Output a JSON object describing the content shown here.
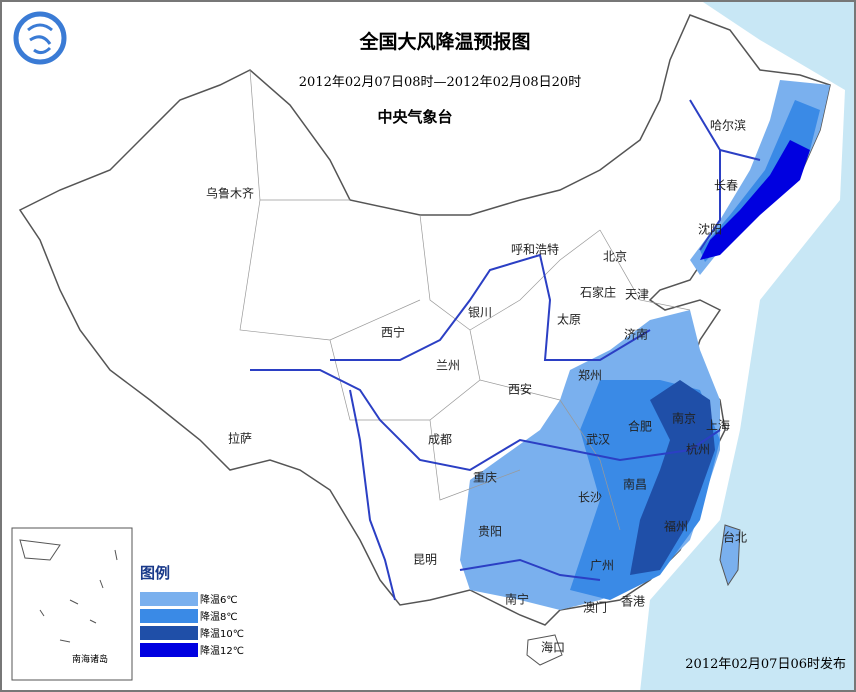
{
  "header": {
    "title": "全国大风降温预报图",
    "period": "2012年02月07日08时—2012年02月08日20时",
    "issuer": "中央气象台"
  },
  "cities": [
    "乌鲁木齐",
    "哈尔滨",
    "长春",
    "沈阳",
    "呼和浩特",
    "北京",
    "天津",
    "石家庄",
    "太原",
    "济南",
    "银川",
    "西宁",
    "兰州",
    "西安",
    "郑州",
    "南京",
    "上海",
    "合肥",
    "武汉",
    "杭州",
    "拉萨",
    "成都",
    "重庆",
    "长沙",
    "南昌",
    "贵阳",
    "福州",
    "台北",
    "昆明",
    "广州",
    "南宁",
    "澳门",
    "香港",
    "海口"
  ],
  "legend": {
    "title": "图例",
    "items": [
      "降温6℃",
      "降温8℃",
      "降温10℃",
      "降温12℃"
    ]
  },
  "inset_label": "南海诸岛",
  "footer": "2012年02月07日06时发布"
}
